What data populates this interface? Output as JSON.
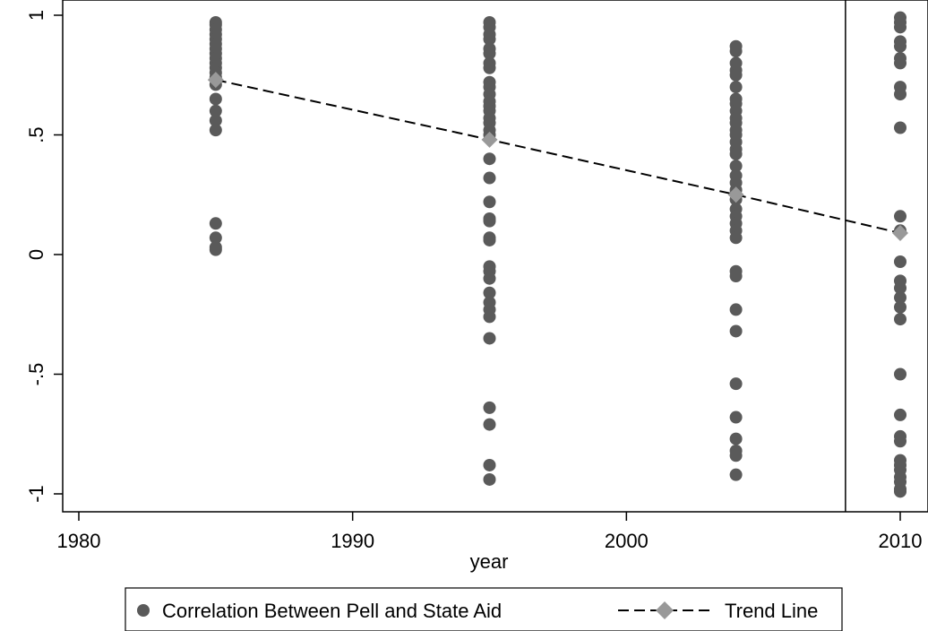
{
  "chart_data": {
    "type": "scatter",
    "xlabel": "year",
    "ylabel": "",
    "xlim": [
      1980,
      2010
    ],
    "ylim": [
      -1,
      1
    ],
    "x_ticks": [
      {
        "value": 1980,
        "label": "1980"
      },
      {
        "value": 1990,
        "label": "1990"
      },
      {
        "value": 2000,
        "label": "2000"
      },
      {
        "value": 2010,
        "label": "2010"
      }
    ],
    "y_ticks": [
      {
        "value": -1,
        "label": "-1"
      },
      {
        "value": -0.5,
        "label": "-.5"
      },
      {
        "value": 0,
        "label": "0"
      },
      {
        "value": 0.5,
        "label": ".5"
      },
      {
        "value": 1,
        "label": "1"
      }
    ],
    "grid": false,
    "reference_line_x": 2008,
    "legend_position": "bottom",
    "series": [
      {
        "name": "Correlation Between Pell and State Aid",
        "kind": "scatter",
        "marker": "circle",
        "color": "#5a5a5a",
        "points": [
          {
            "x": 1985,
            "y": 0.97
          },
          {
            "x": 1985,
            "y": 0.96
          },
          {
            "x": 1985,
            "y": 0.94
          },
          {
            "x": 1985,
            "y": 0.92
          },
          {
            "x": 1985,
            "y": 0.9
          },
          {
            "x": 1985,
            "y": 0.88
          },
          {
            "x": 1985,
            "y": 0.86
          },
          {
            "x": 1985,
            "y": 0.84
          },
          {
            "x": 1985,
            "y": 0.82
          },
          {
            "x": 1985,
            "y": 0.8
          },
          {
            "x": 1985,
            "y": 0.78
          },
          {
            "x": 1985,
            "y": 0.76
          },
          {
            "x": 1985,
            "y": 0.74
          },
          {
            "x": 1985,
            "y": 0.71
          },
          {
            "x": 1985,
            "y": 0.65
          },
          {
            "x": 1985,
            "y": 0.6
          },
          {
            "x": 1985,
            "y": 0.56
          },
          {
            "x": 1985,
            "y": 0.52
          },
          {
            "x": 1985,
            "y": 0.13
          },
          {
            "x": 1985,
            "y": 0.07
          },
          {
            "x": 1985,
            "y": 0.03
          },
          {
            "x": 1985,
            "y": 0.02
          },
          {
            "x": 1995,
            "y": 0.97
          },
          {
            "x": 1995,
            "y": 0.95
          },
          {
            "x": 1995,
            "y": 0.92
          },
          {
            "x": 1995,
            "y": 0.9
          },
          {
            "x": 1995,
            "y": 0.86
          },
          {
            "x": 1995,
            "y": 0.84
          },
          {
            "x": 1995,
            "y": 0.8
          },
          {
            "x": 1995,
            "y": 0.78
          },
          {
            "x": 1995,
            "y": 0.72
          },
          {
            "x": 1995,
            "y": 0.7
          },
          {
            "x": 1995,
            "y": 0.67
          },
          {
            "x": 1995,
            "y": 0.64
          },
          {
            "x": 1995,
            "y": 0.62
          },
          {
            "x": 1995,
            "y": 0.6
          },
          {
            "x": 1995,
            "y": 0.57
          },
          {
            "x": 1995,
            "y": 0.55
          },
          {
            "x": 1995,
            "y": 0.52
          },
          {
            "x": 1995,
            "y": 0.5
          },
          {
            "x": 1995,
            "y": 0.4
          },
          {
            "x": 1995,
            "y": 0.32
          },
          {
            "x": 1995,
            "y": 0.22
          },
          {
            "x": 1995,
            "y": 0.15
          },
          {
            "x": 1995,
            "y": 0.14
          },
          {
            "x": 1995,
            "y": 0.07
          },
          {
            "x": 1995,
            "y": 0.06
          },
          {
            "x": 1995,
            "y": -0.05
          },
          {
            "x": 1995,
            "y": -0.07
          },
          {
            "x": 1995,
            "y": -0.1
          },
          {
            "x": 1995,
            "y": -0.16
          },
          {
            "x": 1995,
            "y": -0.2
          },
          {
            "x": 1995,
            "y": -0.23
          },
          {
            "x": 1995,
            "y": -0.26
          },
          {
            "x": 1995,
            "y": -0.35
          },
          {
            "x": 1995,
            "y": -0.64
          },
          {
            "x": 1995,
            "y": -0.71
          },
          {
            "x": 1995,
            "y": -0.88
          },
          {
            "x": 1995,
            "y": -0.94
          },
          {
            "x": 2004,
            "y": 0.87
          },
          {
            "x": 2004,
            "y": 0.85
          },
          {
            "x": 2004,
            "y": 0.8
          },
          {
            "x": 2004,
            "y": 0.77
          },
          {
            "x": 2004,
            "y": 0.75
          },
          {
            "x": 2004,
            "y": 0.7
          },
          {
            "x": 2004,
            "y": 0.65
          },
          {
            "x": 2004,
            "y": 0.63
          },
          {
            "x": 2004,
            "y": 0.6
          },
          {
            "x": 2004,
            "y": 0.57
          },
          {
            "x": 2004,
            "y": 0.55
          },
          {
            "x": 2004,
            "y": 0.52
          },
          {
            "x": 2004,
            "y": 0.5
          },
          {
            "x": 2004,
            "y": 0.47
          },
          {
            "x": 2004,
            "y": 0.44
          },
          {
            "x": 2004,
            "y": 0.42
          },
          {
            "x": 2004,
            "y": 0.37
          },
          {
            "x": 2004,
            "y": 0.33
          },
          {
            "x": 2004,
            "y": 0.3
          },
          {
            "x": 2004,
            "y": 0.27
          },
          {
            "x": 2004,
            "y": 0.23
          },
          {
            "x": 2004,
            "y": 0.19
          },
          {
            "x": 2004,
            "y": 0.16
          },
          {
            "x": 2004,
            "y": 0.13
          },
          {
            "x": 2004,
            "y": 0.1
          },
          {
            "x": 2004,
            "y": 0.07
          },
          {
            "x": 2004,
            "y": -0.07
          },
          {
            "x": 2004,
            "y": -0.09
          },
          {
            "x": 2004,
            "y": -0.23
          },
          {
            "x": 2004,
            "y": -0.32
          },
          {
            "x": 2004,
            "y": -0.54
          },
          {
            "x": 2004,
            "y": -0.68
          },
          {
            "x": 2004,
            "y": -0.77
          },
          {
            "x": 2004,
            "y": -0.82
          },
          {
            "x": 2004,
            "y": -0.84
          },
          {
            "x": 2004,
            "y": -0.92
          },
          {
            "x": 2010,
            "y": 0.99
          },
          {
            "x": 2010,
            "y": 0.97
          },
          {
            "x": 2010,
            "y": 0.95
          },
          {
            "x": 2010,
            "y": 0.89
          },
          {
            "x": 2010,
            "y": 0.87
          },
          {
            "x": 2010,
            "y": 0.82
          },
          {
            "x": 2010,
            "y": 0.8
          },
          {
            "x": 2010,
            "y": 0.7
          },
          {
            "x": 2010,
            "y": 0.67
          },
          {
            "x": 2010,
            "y": 0.53
          },
          {
            "x": 2010,
            "y": 0.16
          },
          {
            "x": 2010,
            "y": 0.1
          },
          {
            "x": 2010,
            "y": -0.03
          },
          {
            "x": 2010,
            "y": -0.11
          },
          {
            "x": 2010,
            "y": -0.14
          },
          {
            "x": 2010,
            "y": -0.18
          },
          {
            "x": 2010,
            "y": -0.22
          },
          {
            "x": 2010,
            "y": -0.27
          },
          {
            "x": 2010,
            "y": -0.5
          },
          {
            "x": 2010,
            "y": -0.67
          },
          {
            "x": 2010,
            "y": -0.76
          },
          {
            "x": 2010,
            "y": -0.78
          },
          {
            "x": 2010,
            "y": -0.86
          },
          {
            "x": 2010,
            "y": -0.88
          },
          {
            "x": 2010,
            "y": -0.9
          },
          {
            "x": 2010,
            "y": -0.93
          },
          {
            "x": 2010,
            "y": -0.95
          },
          {
            "x": 2010,
            "y": -0.98
          },
          {
            "x": 2010,
            "y": -0.99
          }
        ]
      },
      {
        "name": "Trend Line",
        "kind": "line",
        "marker": "diamond",
        "line_style": "dashed",
        "color": "#999999",
        "points": [
          {
            "x": 1985,
            "y": 0.73
          },
          {
            "x": 1995,
            "y": 0.48
          },
          {
            "x": 2004,
            "y": 0.25
          },
          {
            "x": 2010,
            "y": 0.09
          }
        ]
      }
    ]
  }
}
